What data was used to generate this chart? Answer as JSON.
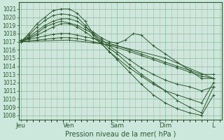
{
  "bg_color": "#cce8dc",
  "grid_color_major": "#88bb99",
  "grid_color_minor_v": "#c8a0a0",
  "grid_color_minor_h": "#88bb99",
  "line_color": "#2d5a2d",
  "ylabel_text": "Pression niveau de la mer( hPa )",
  "x_tick_labels": [
    "Jeu",
    "Ven",
    "Sam",
    "Dim",
    "L"
  ],
  "x_tick_positions": [
    0,
    24,
    48,
    72,
    96
  ],
  "ylim": [
    1007.5,
    1021.8
  ],
  "xlim": [
    -1,
    100
  ],
  "yticks": [
    1008,
    1009,
    1010,
    1011,
    1012,
    1013,
    1014,
    1015,
    1016,
    1017,
    1018,
    1019,
    1020,
    1021
  ],
  "lines": [
    {
      "x": [
        0,
        4,
        8,
        12,
        16,
        20,
        24,
        28,
        32,
        36,
        40,
        44,
        48,
        54,
        60,
        66,
        72,
        78,
        84,
        90,
        96
      ],
      "y": [
        1017.0,
        1018.0,
        1019.2,
        1020.0,
        1020.8,
        1021.0,
        1021.0,
        1020.5,
        1019.5,
        1018.0,
        1017.0,
        1016.2,
        1015.5,
        1014.2,
        1013.0,
        1012.0,
        1011.0,
        1009.8,
        1009.0,
        1008.3,
        1011.5
      ]
    },
    {
      "x": [
        0,
        4,
        8,
        12,
        16,
        20,
        24,
        28,
        32,
        36,
        40,
        44,
        48,
        54,
        60,
        66,
        72,
        78,
        84,
        90,
        96
      ],
      "y": [
        1017.0,
        1017.8,
        1018.8,
        1019.6,
        1020.2,
        1020.4,
        1020.3,
        1020.0,
        1019.0,
        1017.8,
        1016.8,
        1015.8,
        1015.0,
        1013.8,
        1012.8,
        1011.8,
        1011.0,
        1010.5,
        1010.0,
        1009.5,
        1012.0
      ]
    },
    {
      "x": [
        0,
        4,
        8,
        12,
        16,
        20,
        24,
        28,
        32,
        36,
        40,
        44,
        48,
        52,
        56,
        60,
        66,
        72,
        78,
        84,
        90,
        96
      ],
      "y": [
        1017.0,
        1017.6,
        1018.3,
        1019.0,
        1019.5,
        1019.8,
        1019.8,
        1019.5,
        1018.8,
        1018.2,
        1017.5,
        1017.0,
        1016.8,
        1017.2,
        1018.0,
        1017.8,
        1016.5,
        1015.5,
        1014.5,
        1013.5,
        1012.5,
        1012.5
      ]
    },
    {
      "x": [
        0,
        4,
        8,
        12,
        16,
        20,
        24,
        28,
        32,
        36,
        40,
        44,
        48,
        54,
        60,
        66,
        72,
        78,
        84,
        90,
        96
      ],
      "y": [
        1017.0,
        1017.5,
        1018.0,
        1018.8,
        1019.2,
        1019.5,
        1019.3,
        1019.0,
        1018.5,
        1018.0,
        1017.3,
        1016.5,
        1015.8,
        1014.8,
        1013.8,
        1013.0,
        1012.3,
        1011.8,
        1011.5,
        1011.0,
        1011.5
      ]
    },
    {
      "x": [
        0,
        4,
        8,
        12,
        16,
        20,
        24,
        28,
        32,
        36,
        40,
        44,
        48,
        54,
        60,
        66,
        72,
        78,
        84,
        90,
        96
      ],
      "y": [
        1017.2,
        1017.3,
        1017.5,
        1017.7,
        1017.9,
        1018.0,
        1018.0,
        1017.8,
        1017.6,
        1017.4,
        1017.1,
        1016.8,
        1016.5,
        1016.0,
        1015.5,
        1015.0,
        1014.5,
        1014.0,
        1013.5,
        1013.0,
        1013.0
      ]
    },
    {
      "x": [
        0,
        4,
        8,
        12,
        16,
        20,
        24,
        28,
        32,
        36,
        40,
        44,
        48,
        54,
        60,
        66,
        72,
        78,
        84,
        90,
        96
      ],
      "y": [
        1017.1,
        1017.1,
        1017.2,
        1017.3,
        1017.4,
        1017.5,
        1017.5,
        1017.4,
        1017.2,
        1017.0,
        1016.8,
        1016.5,
        1016.3,
        1015.8,
        1015.3,
        1014.8,
        1014.3,
        1013.8,
        1013.3,
        1012.8,
        1012.5
      ]
    },
    {
      "x": [
        0,
        24,
        48,
        72,
        96
      ],
      "y": [
        1017.0,
        1017.2,
        1016.5,
        1015.0,
        1012.5
      ]
    },
    {
      "x": [
        0,
        4,
        8,
        12,
        16,
        20,
        24,
        28,
        32,
        36,
        40,
        44,
        48,
        54,
        60,
        66,
        72,
        78,
        84,
        90,
        96
      ],
      "y": [
        1017.0,
        1017.4,
        1017.8,
        1018.3,
        1018.8,
        1019.2,
        1019.2,
        1018.8,
        1018.2,
        1017.5,
        1016.8,
        1015.8,
        1014.8,
        1013.3,
        1011.8,
        1010.5,
        1009.5,
        1008.8,
        1008.3,
        1008.0,
        1010.5
      ]
    }
  ]
}
